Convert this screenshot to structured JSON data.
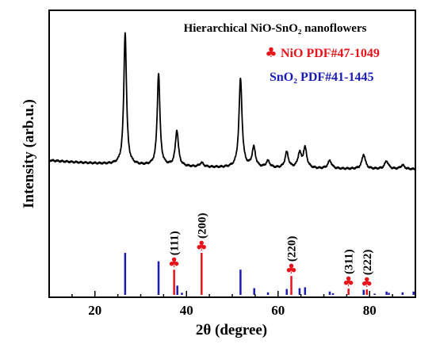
{
  "chart_data": {
    "type": "line",
    "title": "Hierarchical NiO-SnO₂ nanoflowers",
    "xlabel": "2θ (degree)",
    "ylabel": "Intensity (arb.u.)",
    "xlim": [
      10,
      90
    ],
    "x_ticks": [
      "20",
      "40",
      "60",
      "80"
    ],
    "grid": false,
    "legend_position": "top-right",
    "legend": [
      {
        "label": "NiO PDF#47-1049",
        "marker": "♣",
        "color": "#e8141c"
      },
      {
        "label": "SnO₂ PDF#41-1445",
        "marker": "",
        "color": "#1c1cb4"
      }
    ],
    "xrd_pattern": {
      "color": "#000000",
      "baseline": 7,
      "peaks": [
        {
          "x": 26.6,
          "y": 100,
          "w": 0.35
        },
        {
          "x": 33.9,
          "y": 70,
          "w": 0.35
        },
        {
          "x": 37.9,
          "y": 27,
          "w": 0.4
        },
        {
          "x": 43.3,
          "y": 3,
          "w": 0.5
        },
        {
          "x": 51.8,
          "y": 67,
          "w": 0.4
        },
        {
          "x": 54.7,
          "y": 15,
          "w": 0.45
        },
        {
          "x": 57.8,
          "y": 5,
          "w": 0.5
        },
        {
          "x": 61.9,
          "y": 12,
          "w": 0.45
        },
        {
          "x": 64.7,
          "y": 11,
          "w": 0.45
        },
        {
          "x": 65.9,
          "y": 15,
          "w": 0.45
        },
        {
          "x": 71.3,
          "y": 6,
          "w": 0.5
        },
        {
          "x": 78.7,
          "y": 11,
          "w": 0.45
        },
        {
          "x": 83.7,
          "y": 6,
          "w": 0.5
        },
        {
          "x": 87.2,
          "y": 3,
          "w": 0.5
        }
      ]
    },
    "reference_lines": {
      "NiO": {
        "color": "#e8141c",
        "marker": "♣",
        "lines": [
          {
            "x": 37.3,
            "intensity": 60,
            "hkl": "(111)"
          },
          {
            "x": 43.3,
            "intensity": 100,
            "hkl": "(200)"
          },
          {
            "x": 62.9,
            "intensity": 45,
            "hkl": "(220)"
          },
          {
            "x": 75.4,
            "intensity": 15,
            "hkl": "(311)"
          },
          {
            "x": 79.4,
            "intensity": 13,
            "hkl": "(222)"
          }
        ]
      },
      "SnO2": {
        "color": "#1c1cb4",
        "lines": [
          {
            "x": 26.6,
            "intensity": 100
          },
          {
            "x": 33.9,
            "intensity": 80
          },
          {
            "x": 38.0,
            "intensity": 22
          },
          {
            "x": 39.0,
            "intensity": 5
          },
          {
            "x": 51.8,
            "intensity": 60
          },
          {
            "x": 54.8,
            "intensity": 16
          },
          {
            "x": 57.8,
            "intensity": 6
          },
          {
            "x": 61.9,
            "intensity": 14
          },
          {
            "x": 64.7,
            "intensity": 16
          },
          {
            "x": 65.9,
            "intensity": 18
          },
          {
            "x": 71.3,
            "intensity": 8
          },
          {
            "x": 72.0,
            "intensity": 4
          },
          {
            "x": 78.7,
            "intensity": 12
          },
          {
            "x": 81.1,
            "intensity": 3
          },
          {
            "x": 83.7,
            "intensity": 8
          },
          {
            "x": 84.2,
            "intensity": 5
          },
          {
            "x": 87.2,
            "intensity": 6
          },
          {
            "x": 89.6,
            "intensity": 8
          }
        ]
      }
    }
  }
}
